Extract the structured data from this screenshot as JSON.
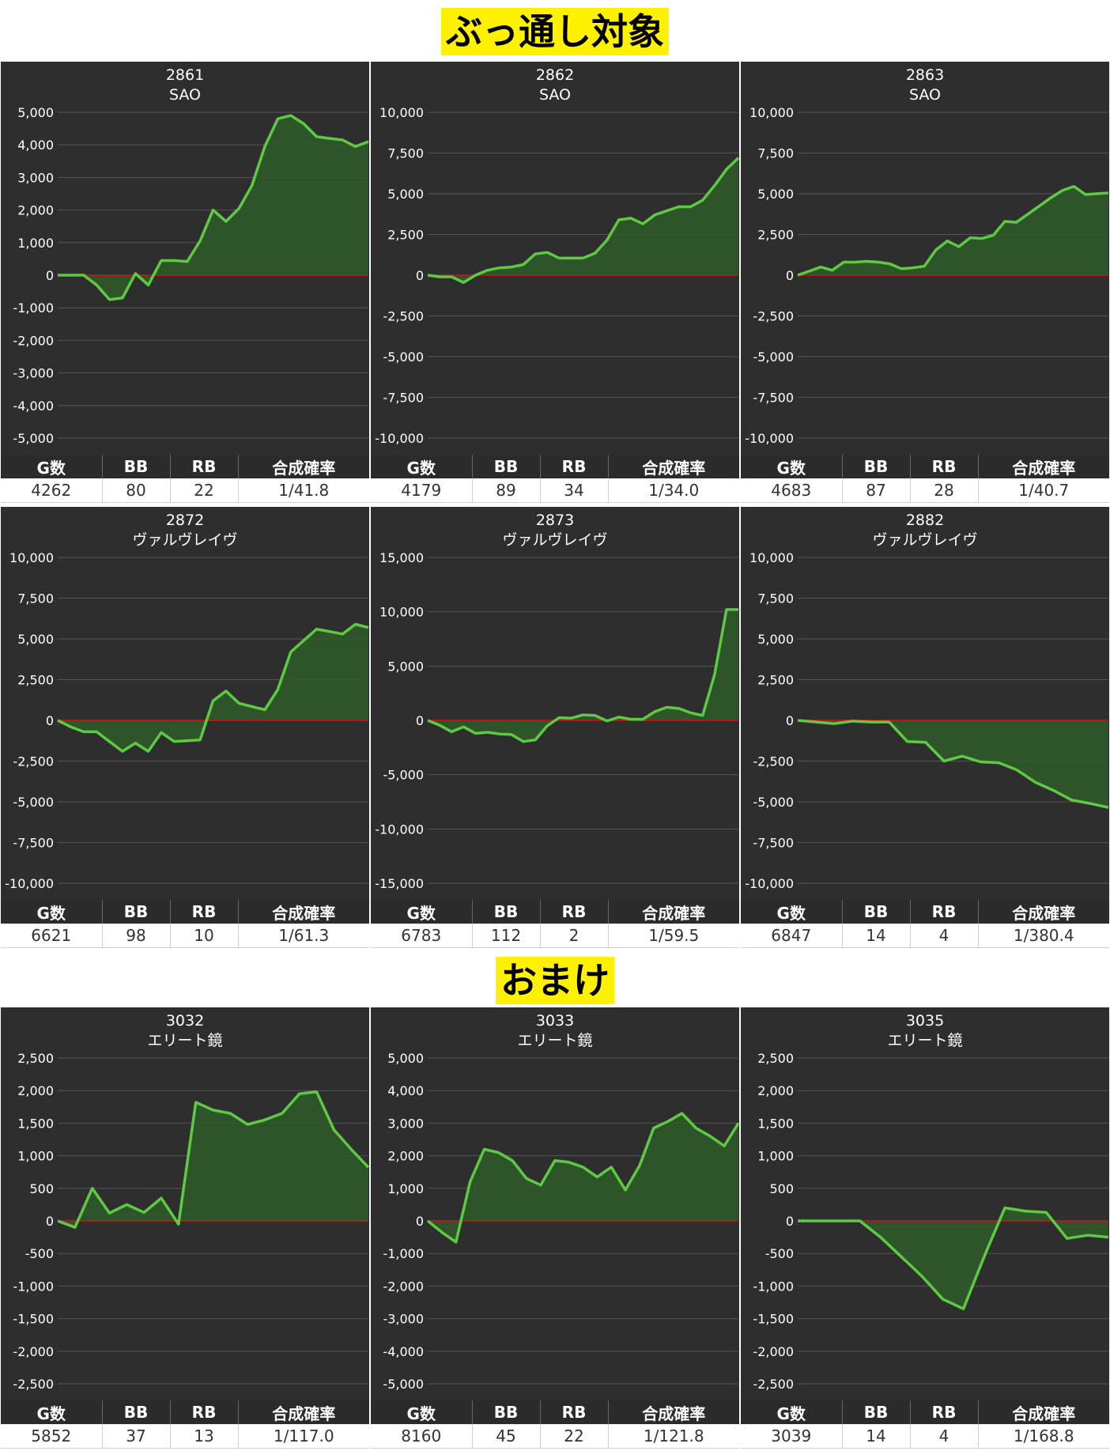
{
  "sections": [
    {
      "title": "ぶっ通し対象"
    },
    {
      "title": "おまけ"
    }
  ],
  "stats_header": {
    "games": "G数",
    "bb": "BB",
    "rb": "RB",
    "rate": "合成確率"
  },
  "colors": {
    "panel_bg": "#2e2e2e",
    "line": "#5ec943",
    "fill": "#2f5a29",
    "zero_line": "#b21a1a",
    "grid": "#555555"
  },
  "chart_data": [
    {
      "type": "area",
      "id": "2861",
      "machine": "SAO",
      "ylim": [
        -5000,
        5000
      ],
      "yticks": [
        5000,
        4000,
        3000,
        2000,
        1000,
        0,
        -1000,
        -2000,
        -3000,
        -4000,
        -5000
      ],
      "y": [
        0,
        0,
        0,
        -300,
        -750,
        -700,
        50,
        -300,
        450,
        450,
        420,
        1050,
        2000,
        1650,
        2050,
        2750,
        3950,
        4800,
        4900,
        4650,
        4250,
        4200,
        4150,
        3950,
        4100
      ],
      "stats": {
        "games": "4262",
        "bb": "80",
        "rb": "22",
        "rate": "1/41.8"
      }
    },
    {
      "type": "area",
      "id": "2862",
      "machine": "SAO",
      "ylim": [
        -10000,
        10000
      ],
      "yticks": [
        10000,
        7500,
        5000,
        2500,
        0,
        -2500,
        -5000,
        -7500,
        -10000
      ],
      "y": [
        0,
        -100,
        -100,
        -450,
        0,
        300,
        450,
        500,
        650,
        1300,
        1400,
        1050,
        1050,
        1050,
        1350,
        2150,
        3400,
        3500,
        3150,
        3700,
        3950,
        4200,
        4200,
        4600,
        5500,
        6500,
        7200
      ],
      "stats": {
        "games": "4179",
        "bb": "89",
        "rb": "34",
        "rate": "1/34.0"
      }
    },
    {
      "type": "area",
      "id": "2863",
      "machine": "SAO",
      "ylim": [
        -10000,
        10000
      ],
      "yticks": [
        10000,
        7500,
        5000,
        2500,
        0,
        -2500,
        -5000,
        -7500,
        -10000
      ],
      "y": [
        0,
        250,
        500,
        300,
        800,
        800,
        850,
        800,
        700,
        400,
        450,
        550,
        1550,
        2100,
        1750,
        2300,
        2250,
        2450,
        3300,
        3250,
        3750,
        4250,
        4750,
        5200,
        5450,
        4950,
        5000,
        5050
      ],
      "stats": {
        "games": "4683",
        "bb": "87",
        "rb": "28",
        "rate": "1/40.7"
      }
    },
    {
      "type": "area",
      "id": "2872",
      "machine": "ヴァルヴレイヴ",
      "ylim": [
        -10000,
        10000
      ],
      "yticks": [
        10000,
        7500,
        5000,
        2500,
        0,
        -2500,
        -5000,
        -7500,
        -10000
      ],
      "y": [
        0,
        -400,
        -700,
        -700,
        -1300,
        -1900,
        -1400,
        -1900,
        -750,
        -1300,
        -1250,
        -1200,
        1200,
        1800,
        1050,
        850,
        650,
        1900,
        4200,
        4900,
        5600,
        5450,
        5300,
        5900,
        5700
      ],
      "stats": {
        "games": "6621",
        "bb": "98",
        "rb": "10",
        "rate": "1/61.3"
      }
    },
    {
      "type": "area",
      "id": "2873",
      "machine": "ヴァルヴレイヴ",
      "ylim": [
        -15000,
        15000
      ],
      "yticks": [
        15000,
        10000,
        5000,
        0,
        -5000,
        -10000,
        -15000
      ],
      "y": [
        0,
        -450,
        -1050,
        -600,
        -1200,
        -1100,
        -1250,
        -1300,
        -1950,
        -1800,
        -500,
        250,
        200,
        500,
        450,
        -50,
        300,
        100,
        100,
        800,
        1200,
        1100,
        700,
        450,
        4200,
        10200,
        10200
      ],
      "stats": {
        "games": "6783",
        "bb": "112",
        "rb": "2",
        "rate": "1/59.5"
      }
    },
    {
      "type": "area",
      "id": "2882",
      "machine": "ヴァルヴレイヴ",
      "ylim": [
        -10000,
        10000
      ],
      "yticks": [
        10000,
        7500,
        5000,
        2500,
        0,
        -2500,
        -5000,
        -7500,
        -10000
      ],
      "y": [
        0,
        -100,
        -200,
        -50,
        -100,
        -100,
        -1300,
        -1350,
        -2500,
        -2200,
        -2550,
        -2600,
        -3050,
        -3800,
        -4300,
        -4900,
        -5100,
        -5350
      ],
      "stats": {
        "games": "6847",
        "bb": "14",
        "rb": "4",
        "rate": "1/380.4"
      }
    },
    {
      "type": "area",
      "id": "3032",
      "machine": "エリート鏡",
      "ylim": [
        -2500,
        2500
      ],
      "yticks": [
        2500,
        2000,
        1500,
        1000,
        500,
        0,
        -500,
        -1000,
        -1500,
        -2000,
        -2500
      ],
      "y": [
        0,
        -100,
        500,
        120,
        250,
        130,
        350,
        -50,
        1820,
        1700,
        1650,
        1480,
        1550,
        1650,
        1950,
        1980,
        1400,
        1100,
        820
      ],
      "stats": {
        "games": "5852",
        "bb": "37",
        "rb": "13",
        "rate": "1/117.0"
      }
    },
    {
      "type": "area",
      "id": "3033",
      "machine": "エリート鏡",
      "ylim": [
        -5000,
        5000
      ],
      "yticks": [
        5000,
        4000,
        3000,
        2000,
        1000,
        0,
        -1000,
        -2000,
        -3000,
        -4000,
        -5000
      ],
      "y": [
        0,
        -350,
        -650,
        1200,
        2200,
        2100,
        1850,
        1300,
        1100,
        1850,
        1800,
        1650,
        1350,
        1650,
        950,
        1700,
        2850,
        3050,
        3300,
        2850,
        2600,
        2300,
        3000
      ],
      "stats": {
        "games": "8160",
        "bb": "45",
        "rb": "22",
        "rate": "1/121.8"
      }
    },
    {
      "type": "area",
      "id": "3035",
      "machine": "エリート鏡",
      "ylim": [
        -2500,
        2500
      ],
      "yticks": [
        2500,
        2000,
        1500,
        1000,
        500,
        0,
        -500,
        -1000,
        -1500,
        -2000,
        -2500
      ],
      "y": [
        0,
        0,
        0,
        0,
        -250,
        -550,
        -850,
        -1200,
        -1350,
        -550,
        200,
        150,
        130,
        -270,
        -220,
        -250
      ],
      "stats": {
        "games": "3039",
        "bb": "14",
        "rb": "4",
        "rate": "1/168.8"
      }
    }
  ]
}
